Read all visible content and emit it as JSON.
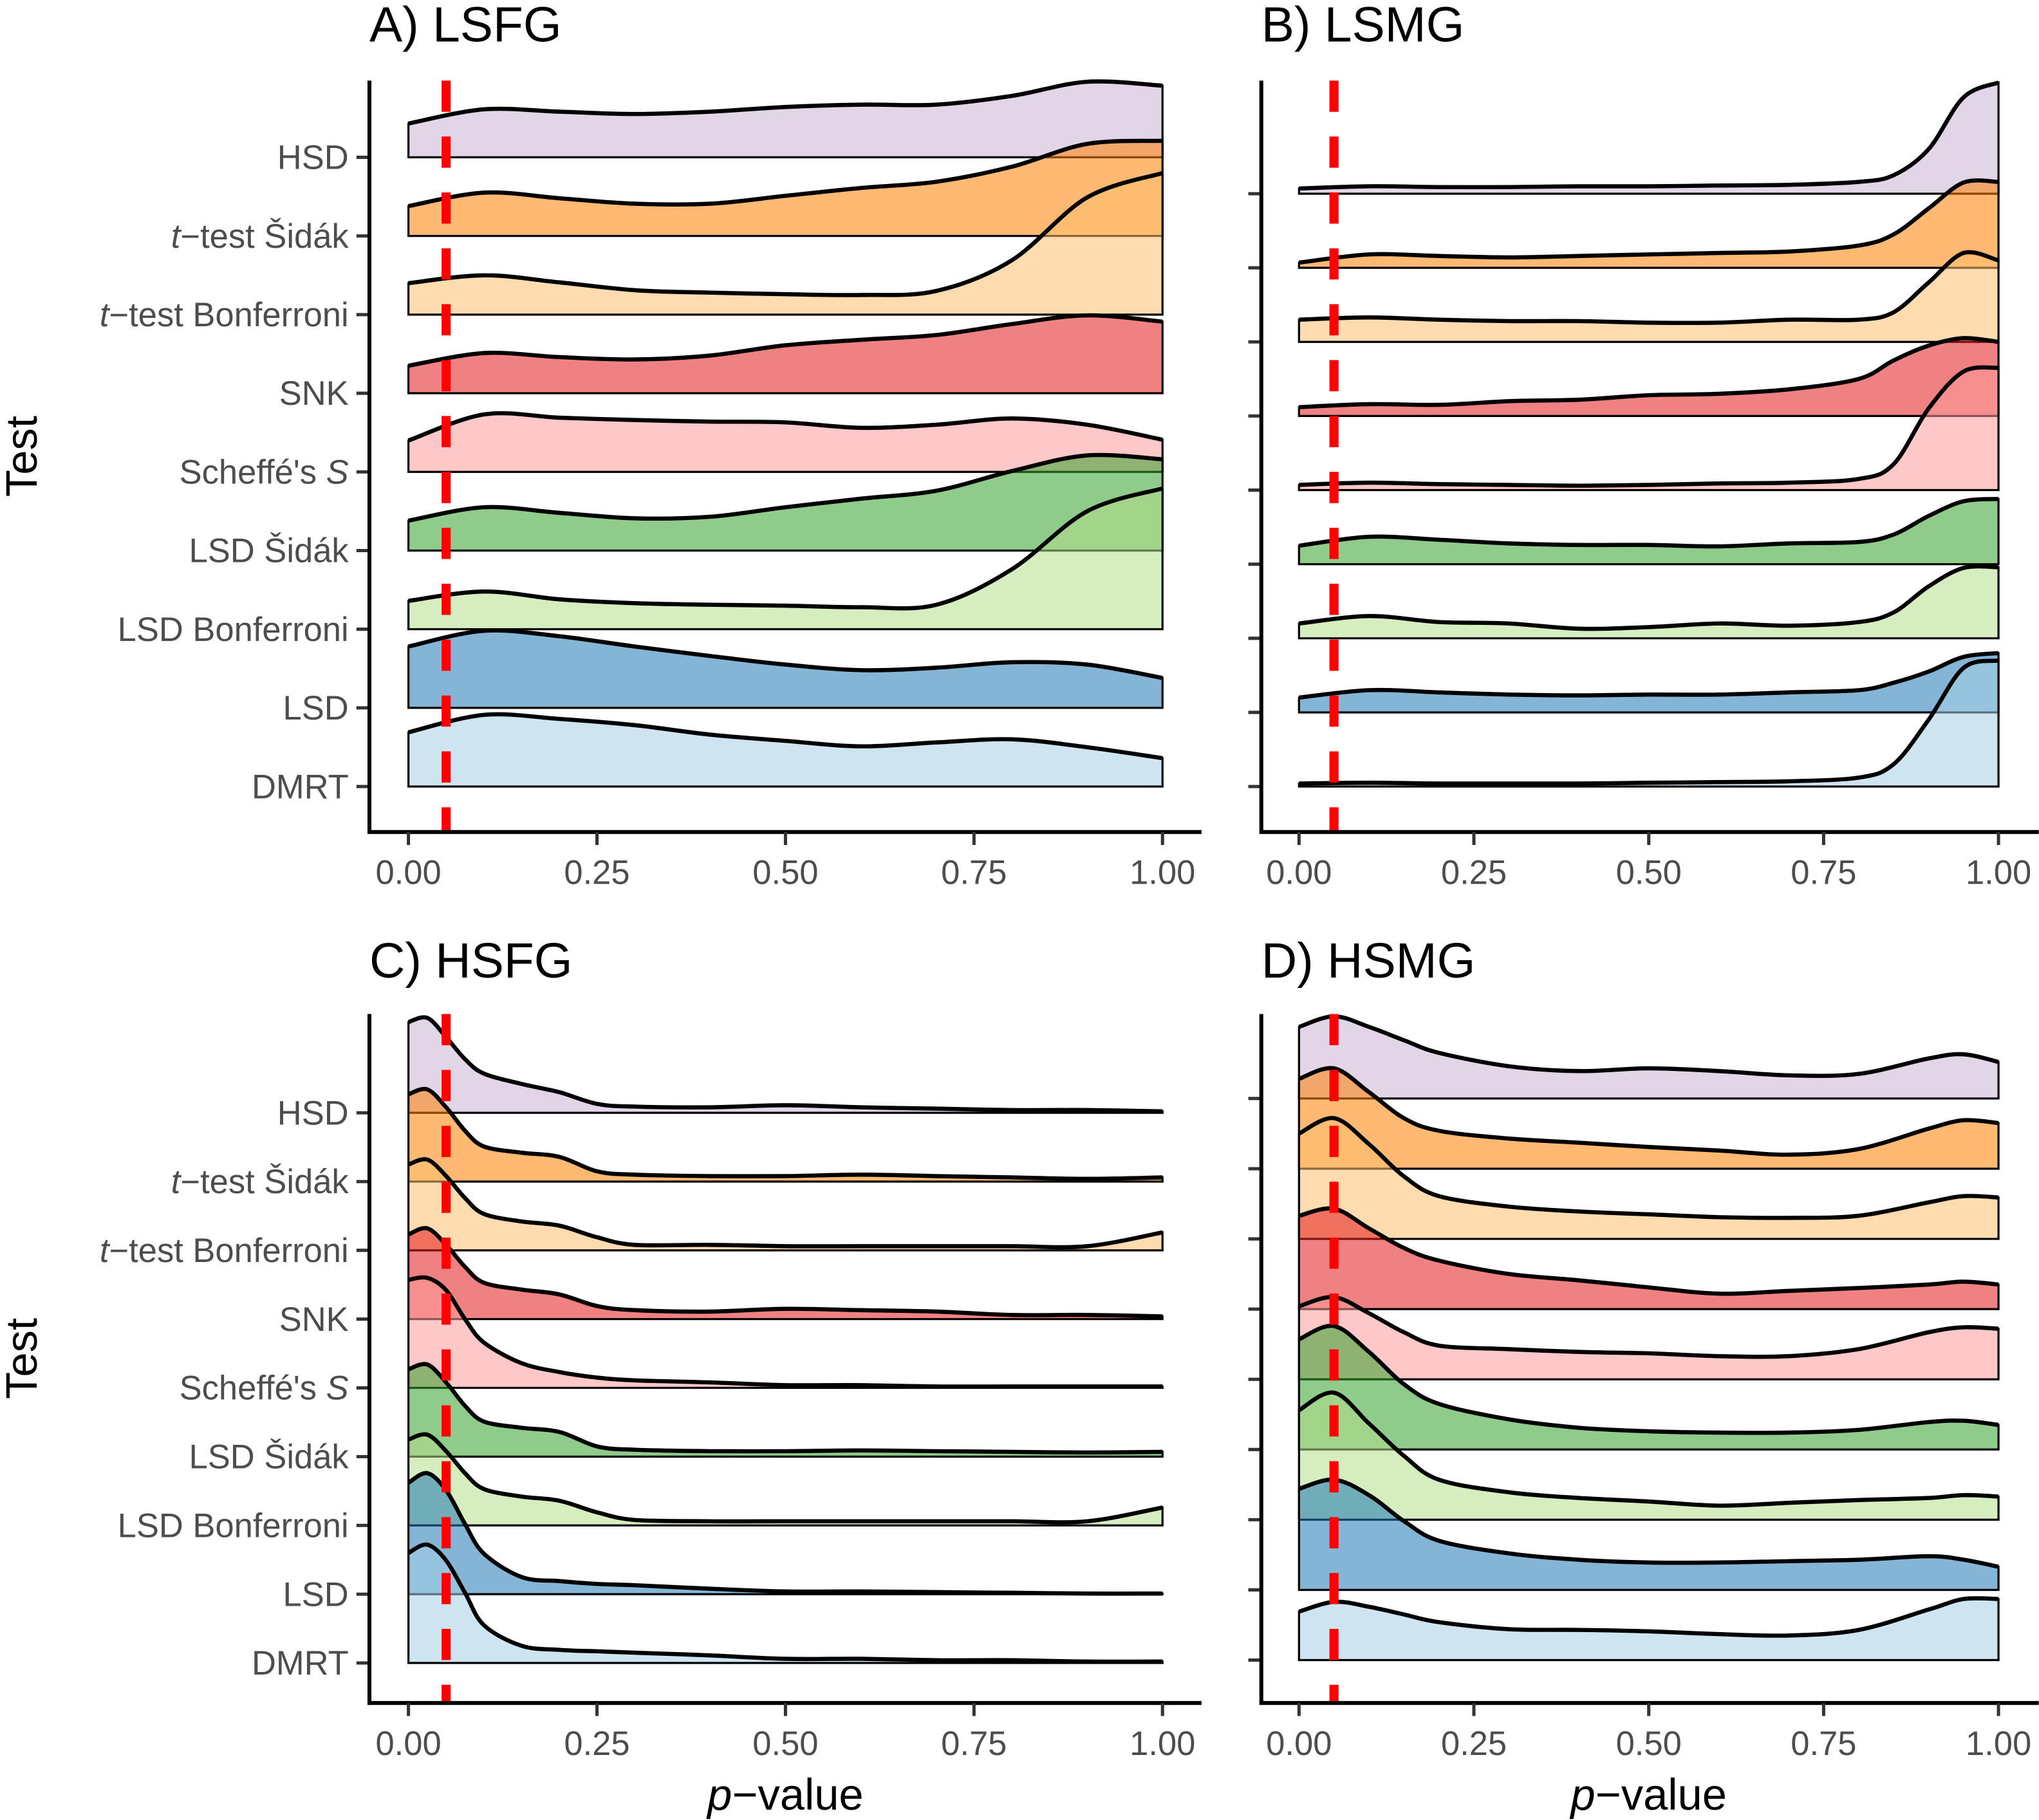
{
  "chart_data": [
    {
      "type": "ridgeline",
      "title": "A) LSFG",
      "xlabel": "",
      "ylabel": "Test",
      "xlim": [
        0,
        1
      ],
      "xticks": [
        "0.00",
        "0.25",
        "0.50",
        "0.75",
        "1.00"
      ],
      "show_ytick_labels": true,
      "reference_line": {
        "x": 0.05,
        "color": "#ff0000",
        "style": "dashed"
      },
      "x": [
        0,
        0.1,
        0.2,
        0.3,
        0.4,
        0.5,
        0.6,
        0.7,
        0.8,
        0.9,
        1.0
      ],
      "series": [
        {
          "name": "HSD",
          "color": "#cab2d6",
          "density": [
            0.43,
            0.61,
            0.58,
            0.55,
            0.58,
            0.64,
            0.67,
            0.67,
            0.78,
            0.96,
            0.91
          ]
        },
        {
          "name": "t−test Šidák",
          "color": "#ff7f00",
          "density": [
            0.38,
            0.55,
            0.48,
            0.41,
            0.41,
            0.51,
            0.61,
            0.69,
            0.88,
            1.17,
            1.21
          ]
        },
        {
          "name": "t−test Bonferroni",
          "color": "#fdbf6f",
          "density": [
            0.4,
            0.5,
            0.41,
            0.31,
            0.28,
            0.26,
            0.25,
            0.3,
            0.69,
            1.49,
            1.8
          ]
        },
        {
          "name": "SNK",
          "color": "#e31a1c",
          "density": [
            0.35,
            0.51,
            0.46,
            0.43,
            0.48,
            0.61,
            0.68,
            0.74,
            0.88,
            0.99,
            0.91
          ]
        },
        {
          "name": "Scheffé's S",
          "color": "#fb9a99",
          "density": [
            0.4,
            0.73,
            0.69,
            0.66,
            0.64,
            0.63,
            0.56,
            0.6,
            0.68,
            0.6,
            0.41
          ]
        },
        {
          "name": "LSD Šidák",
          "color": "#33a02c",
          "density": [
            0.38,
            0.55,
            0.48,
            0.41,
            0.43,
            0.55,
            0.66,
            0.76,
            1.01,
            1.21,
            1.16
          ]
        },
        {
          "name": "LSD Bonferroni",
          "color": "#b2df8a",
          "density": [
            0.36,
            0.48,
            0.38,
            0.33,
            0.31,
            0.3,
            0.28,
            0.31,
            0.76,
            1.5,
            1.79
          ]
        },
        {
          "name": "LSD",
          "color": "#1f78b4",
          "density": [
            0.78,
            0.98,
            0.91,
            0.78,
            0.66,
            0.55,
            0.48,
            0.51,
            0.58,
            0.55,
            0.38
          ]
        },
        {
          "name": "DMRT",
          "color": "#a6cee3",
          "density": [
            0.69,
            0.91,
            0.86,
            0.78,
            0.66,
            0.58,
            0.51,
            0.56,
            0.6,
            0.5,
            0.36
          ]
        }
      ]
    },
    {
      "type": "ridgeline",
      "title": "B) LSMG",
      "xlabel": "",
      "ylabel": "",
      "xlim": [
        0,
        1
      ],
      "xticks": [
        "0.00",
        "0.25",
        "0.50",
        "0.75",
        "1.00"
      ],
      "show_ytick_labels": false,
      "reference_line": {
        "x": 0.05,
        "color": "#ff0000",
        "style": "dashed"
      },
      "x": [
        0,
        0.1,
        0.2,
        0.3,
        0.4,
        0.5,
        0.6,
        0.7,
        0.8,
        0.85,
        0.9,
        0.95,
        1.0
      ],
      "series": [
        {
          "name": "HSD",
          "color": "#cab2d6",
          "density": [
            0.07,
            0.1,
            0.09,
            0.09,
            0.1,
            0.1,
            0.11,
            0.12,
            0.16,
            0.25,
            0.6,
            1.3,
            1.5
          ]
        },
        {
          "name": "t−test Šidák",
          "color": "#ff7f00",
          "density": [
            0.07,
            0.18,
            0.16,
            0.14,
            0.16,
            0.18,
            0.2,
            0.22,
            0.3,
            0.45,
            0.8,
            1.15,
            1.16
          ]
        },
        {
          "name": "t−test Bonferroni",
          "color": "#fdbf6f",
          "density": [
            0.3,
            0.33,
            0.3,
            0.28,
            0.28,
            0.26,
            0.26,
            0.3,
            0.3,
            0.4,
            0.8,
            1.2,
            1.1
          ]
        },
        {
          "name": "SNK",
          "color": "#e31a1c",
          "density": [
            0.12,
            0.16,
            0.15,
            0.2,
            0.22,
            0.28,
            0.3,
            0.36,
            0.5,
            0.75,
            0.95,
            1.05,
            1.0
          ]
        },
        {
          "name": "Scheffé's S",
          "color": "#fb9a99",
          "density": [
            0.07,
            0.1,
            0.08,
            0.07,
            0.06,
            0.07,
            0.09,
            0.1,
            0.15,
            0.35,
            1.1,
            1.6,
            1.65
          ]
        },
        {
          "name": "LSD Šidák",
          "color": "#33a02c",
          "density": [
            0.25,
            0.37,
            0.33,
            0.28,
            0.26,
            0.26,
            0.24,
            0.28,
            0.3,
            0.4,
            0.65,
            0.85,
            0.88
          ]
        },
        {
          "name": "LSD Bonferroni",
          "color": "#b2df8a",
          "density": [
            0.2,
            0.3,
            0.22,
            0.2,
            0.13,
            0.15,
            0.2,
            0.17,
            0.22,
            0.35,
            0.7,
            0.95,
            0.96
          ]
        },
        {
          "name": "LSD",
          "color": "#1f78b4",
          "density": [
            0.2,
            0.3,
            0.27,
            0.24,
            0.23,
            0.24,
            0.24,
            0.27,
            0.3,
            0.4,
            0.55,
            0.75,
            0.8
          ]
        },
        {
          "name": "DMRT",
          "color": "#a6cee3",
          "density": [
            0.04,
            0.05,
            0.04,
            0.04,
            0.04,
            0.05,
            0.06,
            0.07,
            0.12,
            0.3,
            0.9,
            1.6,
            1.7
          ]
        }
      ]
    },
    {
      "type": "ridgeline",
      "title": "C) HSFG",
      "xlabel": "p−value",
      "ylabel": "Test",
      "xlim": [
        0,
        1
      ],
      "xticks": [
        "0.00",
        "0.25",
        "0.50",
        "0.75",
        "1.00"
      ],
      "show_ytick_labels": true,
      "reference_line": {
        "x": 0.05,
        "color": "#ff0000",
        "style": "dashed"
      },
      "x": [
        0,
        0.025,
        0.05,
        0.075,
        0.1,
        0.15,
        0.2,
        0.25,
        0.3,
        0.4,
        0.5,
        0.6,
        0.7,
        0.8,
        0.9,
        1.0
      ],
      "series": [
        {
          "name": "HSD",
          "color": "#cab2d6",
          "density": [
            1.32,
            1.38,
            1.1,
            0.78,
            0.57,
            0.42,
            0.3,
            0.13,
            0.09,
            0.08,
            0.11,
            0.08,
            0.06,
            0.04,
            0.04,
            0.02
          ]
        },
        {
          "name": "t−test Šidák",
          "color": "#ff7f00",
          "density": [
            1.27,
            1.34,
            1.08,
            0.74,
            0.51,
            0.42,
            0.36,
            0.15,
            0.1,
            0.08,
            0.08,
            0.1,
            0.08,
            0.06,
            0.04,
            0.06
          ]
        },
        {
          "name": "t−test Bonferroni",
          "color": "#fdbf6f",
          "density": [
            1.25,
            1.32,
            1.08,
            0.76,
            0.53,
            0.42,
            0.36,
            0.19,
            0.08,
            0.08,
            0.06,
            0.06,
            0.06,
            0.06,
            0.06,
            0.26
          ]
        },
        {
          "name": "SNK",
          "color": "#e31a1c",
          "density": [
            1.23,
            1.32,
            1.08,
            0.76,
            0.53,
            0.43,
            0.36,
            0.19,
            0.13,
            0.11,
            0.15,
            0.13,
            0.11,
            0.06,
            0.06,
            0.04
          ]
        },
        {
          "name": "Scheffé's S",
          "color": "#fb9a99",
          "density": [
            1.57,
            1.6,
            1.42,
            1.0,
            0.66,
            0.36,
            0.23,
            0.15,
            0.11,
            0.08,
            0.04,
            0.04,
            0.02,
            0.02,
            0.02,
            0.02
          ]
        },
        {
          "name": "LSD Šidák",
          "color": "#33a02c",
          "density": [
            1.27,
            1.34,
            1.08,
            0.74,
            0.51,
            0.42,
            0.36,
            0.15,
            0.1,
            0.08,
            0.08,
            0.09,
            0.08,
            0.07,
            0.06,
            0.07
          ]
        },
        {
          "name": "LSD Bonferroni",
          "color": "#b2df8a",
          "density": [
            1.25,
            1.32,
            1.08,
            0.76,
            0.53,
            0.42,
            0.36,
            0.19,
            0.08,
            0.06,
            0.06,
            0.06,
            0.06,
            0.06,
            0.06,
            0.26
          ]
        },
        {
          "name": "LSD",
          "color": "#1f78b4",
          "density": [
            1.62,
            1.76,
            1.51,
            1.02,
            0.59,
            0.25,
            0.19,
            0.15,
            0.13,
            0.08,
            0.04,
            0.04,
            0.03,
            0.02,
            0.01,
            0.01
          ]
        },
        {
          "name": "DMRT",
          "color": "#a6cee3",
          "density": [
            1.6,
            1.72,
            1.49,
            1.02,
            0.55,
            0.25,
            0.19,
            0.17,
            0.15,
            0.11,
            0.06,
            0.06,
            0.04,
            0.04,
            0.02,
            0.02
          ]
        }
      ]
    },
    {
      "type": "ridgeline",
      "title": "D) HSMG",
      "xlabel": "p−value",
      "ylabel": "",
      "xlim": [
        0,
        1
      ],
      "xticks": [
        "0.00",
        "0.25",
        "0.50",
        "0.75",
        "1.00"
      ],
      "show_ytick_labels": false,
      "reference_line": {
        "x": 0.05,
        "color": "#ff0000",
        "style": "dashed"
      },
      "x": [
        0,
        0.05,
        0.1,
        0.15,
        0.2,
        0.3,
        0.4,
        0.5,
        0.6,
        0.7,
        0.8,
        0.9,
        0.95,
        1.0
      ],
      "series": [
        {
          "name": "HSD",
          "color": "#cab2d6",
          "density": [
            1.02,
            1.17,
            1.02,
            0.83,
            0.65,
            0.46,
            0.39,
            0.43,
            0.39,
            0.33,
            0.35,
            0.57,
            0.63,
            0.52
          ]
        },
        {
          "name": "t−test Šidák",
          "color": "#ff7f00",
          "density": [
            1.28,
            1.43,
            1.09,
            0.72,
            0.54,
            0.43,
            0.37,
            0.31,
            0.26,
            0.2,
            0.28,
            0.57,
            0.69,
            0.65
          ]
        },
        {
          "name": "t−test Bonferroni",
          "color": "#fdbf6f",
          "density": [
            1.5,
            1.72,
            1.35,
            0.89,
            0.61,
            0.46,
            0.39,
            0.35,
            0.31,
            0.3,
            0.33,
            0.52,
            0.61,
            0.59
          ]
        },
        {
          "name": "SNK",
          "color": "#e31a1c",
          "density": [
            1.33,
            1.43,
            1.15,
            0.87,
            0.69,
            0.5,
            0.41,
            0.31,
            0.22,
            0.26,
            0.3,
            0.35,
            0.39,
            0.35
          ]
        },
        {
          "name": "Scheffé's S",
          "color": "#fb9a99",
          "density": [
            1.04,
            1.17,
            0.94,
            0.67,
            0.48,
            0.43,
            0.39,
            0.37,
            0.33,
            0.33,
            0.43,
            0.67,
            0.74,
            0.72
          ]
        },
        {
          "name": "LSD Šidák",
          "color": "#33a02c",
          "density": [
            1.57,
            1.76,
            1.39,
            0.93,
            0.65,
            0.43,
            0.31,
            0.26,
            0.24,
            0.24,
            0.28,
            0.39,
            0.41,
            0.35
          ]
        },
        {
          "name": "LSD Bonferroni",
          "color": "#b2df8a",
          "density": [
            1.56,
            1.81,
            1.37,
            0.91,
            0.57,
            0.39,
            0.31,
            0.26,
            0.2,
            0.24,
            0.28,
            0.31,
            0.35,
            0.33
          ]
        },
        {
          "name": "LSD",
          "color": "#1f78b4",
          "density": [
            1.44,
            1.57,
            1.35,
            0.98,
            0.7,
            0.52,
            0.43,
            0.39,
            0.39,
            0.41,
            0.43,
            0.48,
            0.43,
            0.33
          ]
        },
        {
          "name": "DMRT",
          "color": "#a6cee3",
          "density": [
            0.69,
            0.83,
            0.76,
            0.65,
            0.54,
            0.44,
            0.43,
            0.41,
            0.37,
            0.35,
            0.43,
            0.72,
            0.87,
            0.87
          ]
        }
      ]
    }
  ]
}
